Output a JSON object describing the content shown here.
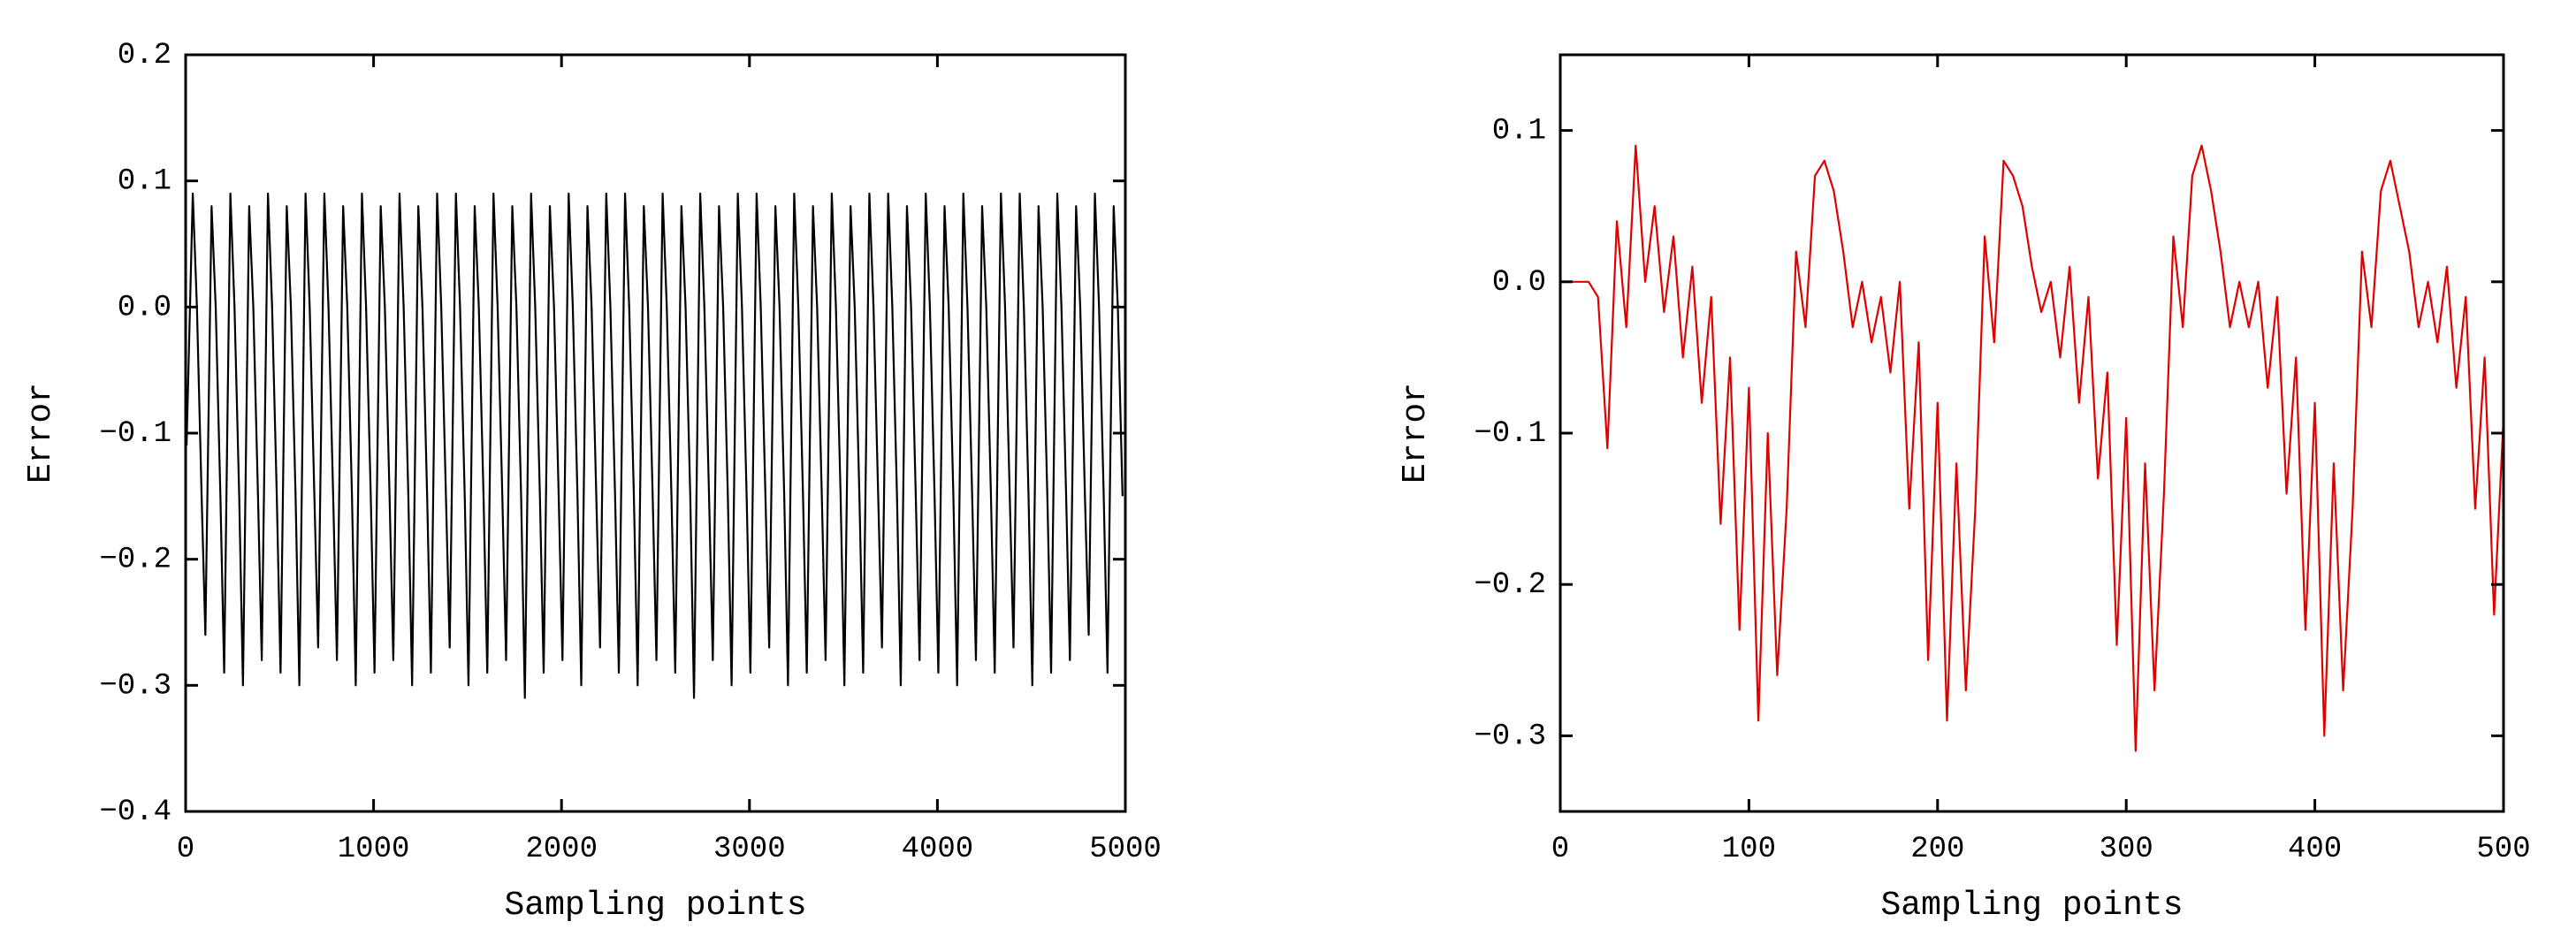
{
  "chart_data": [
    {
      "type": "line",
      "xlabel": "Sampling points",
      "ylabel": "Error",
      "xlim": [
        0,
        5000
      ],
      "xticks": [
        0,
        1000,
        2000,
        3000,
        4000,
        5000
      ],
      "ylim": [
        -0.4,
        0.2
      ],
      "yticks": [
        {
          "value": -0.4,
          "label": "−0.4"
        },
        {
          "value": -0.3,
          "label": "−0.3"
        },
        {
          "value": -0.2,
          "label": "−0.2"
        },
        {
          "value": -0.1,
          "label": "−0.1"
        },
        {
          "value": 0,
          "label": "0.0"
        },
        0.1,
        0.2
      ],
      "x": [
        5,
        38,
        60,
        85,
        105,
        138,
        160,
        185,
        205,
        238,
        260,
        285,
        305,
        338,
        360,
        385,
        405,
        438,
        460,
        485,
        505,
        538,
        560,
        585,
        605,
        638,
        660,
        685,
        705,
        738,
        760,
        785,
        805,
        838,
        860,
        885,
        905,
        938,
        960,
        985,
        1005,
        1038,
        1060,
        1085,
        1105,
        1138,
        1160,
        1185,
        1205,
        1238,
        1260,
        1285,
        1305,
        1338,
        1360,
        1385,
        1405,
        1438,
        1460,
        1485,
        1505,
        1538,
        1560,
        1585,
        1605,
        1638,
        1660,
        1685,
        1705,
        1738,
        1760,
        1785,
        1805,
        1838,
        1860,
        1885,
        1905,
        1938,
        1960,
        1985,
        2005,
        2038,
        2060,
        2085,
        2105,
        2138,
        2160,
        2185,
        2205,
        2238,
        2260,
        2285,
        2305,
        2338,
        2360,
        2385,
        2405,
        2438,
        2460,
        2485,
        2505,
        2538,
        2560,
        2585,
        2605,
        2638,
        2660,
        2685,
        2705,
        2738,
        2760,
        2785,
        2805,
        2838,
        2860,
        2885,
        2905,
        2938,
        2960,
        2985,
        3005,
        3038,
        3060,
        3085,
        3105,
        3138,
        3160,
        3185,
        3205,
        3238,
        3260,
        3285,
        3305,
        3338,
        3360,
        3385,
        3405,
        3438,
        3460,
        3485,
        3505,
        3538,
        3560,
        3585,
        3605,
        3638,
        3660,
        3685,
        3705,
        3738,
        3760,
        3785,
        3805,
        3838,
        3860,
        3885,
        3905,
        3938,
        3960,
        3985,
        4005,
        4038,
        4060,
        4085,
        4105,
        4138,
        4160,
        4185,
        4205,
        4238,
        4260,
        4285,
        4305,
        4338,
        4360,
        4385,
        4405,
        4438,
        4460,
        4485,
        4505,
        4538,
        4560,
        4585,
        4605,
        4638,
        4660,
        4685,
        4705,
        4738,
        4760,
        4785,
        4805,
        4838,
        4860,
        4885,
        4905,
        4938,
        4960,
        4985
      ],
      "series": [
        {
          "color": "#000000",
          "values": [
            -0.11,
            0.09,
            0,
            -0.15,
            -0.26,
            0.08,
            0,
            -0.15,
            -0.29,
            0.09,
            0,
            -0.15,
            -0.3,
            0.08,
            0,
            -0.15,
            -0.28,
            0.09,
            0,
            -0.15,
            -0.29,
            0.08,
            0,
            -0.15,
            -0.3,
            0.09,
            0,
            -0.15,
            -0.27,
            0.09,
            0,
            -0.15,
            -0.28,
            0.08,
            0,
            -0.15,
            -0.3,
            0.09,
            0,
            -0.15,
            -0.29,
            0.08,
            0,
            -0.15,
            -0.28,
            0.09,
            0,
            -0.15,
            -0.3,
            0.08,
            0,
            -0.15,
            -0.29,
            0.09,
            0,
            -0.15,
            -0.27,
            0.09,
            0,
            -0.15,
            -0.3,
            0.08,
            0,
            -0.15,
            -0.29,
            0.09,
            0,
            -0.15,
            -0.28,
            0.08,
            0,
            -0.15,
            -0.31,
            0.09,
            0,
            -0.15,
            -0.29,
            0.08,
            0,
            -0.15,
            -0.28,
            0.09,
            0,
            -0.15,
            -0.3,
            0.08,
            0,
            -0.15,
            -0.27,
            0.09,
            0,
            -0.15,
            -0.29,
            0.09,
            0,
            -0.15,
            -0.3,
            0.08,
            0,
            -0.15,
            -0.28,
            0.09,
            0,
            -0.15,
            -0.29,
            0.08,
            0,
            -0.15,
            -0.31,
            0.09,
            0,
            -0.15,
            -0.28,
            0.08,
            0,
            -0.15,
            -0.3,
            0.09,
            0,
            -0.15,
            -0.29,
            0.09,
            0,
            -0.15,
            -0.27,
            0.08,
            0,
            -0.15,
            -0.3,
            0.09,
            0,
            -0.15,
            -0.29,
            0.08,
            0,
            -0.15,
            -0.28,
            0.09,
            0,
            -0.15,
            -0.3,
            0.08,
            0,
            -0.15,
            -0.29,
            0.09,
            0,
            -0.15,
            -0.27,
            0.09,
            0,
            -0.15,
            -0.3,
            0.08,
            0,
            -0.15,
            -0.28,
            0.09,
            0,
            -0.15,
            -0.29,
            0.08,
            0,
            -0.15,
            -0.3,
            0.09,
            0,
            -0.15,
            -0.28,
            0.08,
            0,
            -0.15,
            -0.29,
            0.09,
            0,
            -0.15,
            -0.27,
            0.09,
            0,
            -0.15,
            -0.3,
            0.08,
            0,
            -0.15,
            -0.29,
            0.09,
            0,
            -0.15,
            -0.28,
            0.08,
            0,
            -0.15,
            -0.26,
            0.09,
            0,
            -0.15,
            -0.29,
            0.08,
            0,
            -0.15
          ]
        }
      ]
    },
    {
      "type": "line",
      "xlabel": "Sampling points",
      "ylabel": "Error",
      "xlim": [
        0,
        500
      ],
      "xticks": [
        0,
        100,
        200,
        300,
        400,
        500
      ],
      "ylim": [
        -0.35,
        0.15
      ],
      "yticks": [
        {
          "value": -0.3,
          "label": "−0.3"
        },
        {
          "value": -0.2,
          "label": "−0.2"
        },
        {
          "value": -0.1,
          "label": "−0.1"
        },
        {
          "value": 0,
          "label": "0.0"
        },
        0.1
      ],
      "x": [
        0,
        5,
        10,
        15,
        20,
        25,
        30,
        35,
        40,
        45,
        50,
        55,
        60,
        65,
        70,
        75,
        80,
        85,
        90,
        95,
        100,
        105,
        110,
        115,
        120,
        125,
        130,
        135,
        140,
        145,
        150,
        155,
        160,
        165,
        170,
        175,
        180,
        185,
        190,
        195,
        200,
        205,
        210,
        215,
        220,
        225,
        230,
        235,
        240,
        245,
        250,
        255,
        260,
        265,
        270,
        275,
        280,
        285,
        290,
        295,
        300,
        305,
        310,
        315,
        320,
        325,
        330,
        335,
        340,
        345,
        350,
        355,
        360,
        365,
        370,
        375,
        380,
        385,
        390,
        395,
        400,
        405,
        410,
        415,
        420,
        425,
        430,
        435,
        440,
        445,
        450,
        455,
        460,
        465,
        470,
        475,
        480,
        485,
        490,
        495,
        500
      ],
      "series": [
        {
          "color": "#e00000",
          "values": [
            0,
            0,
            0,
            0,
            -0.01,
            -0.11,
            0.04,
            -0.03,
            0.09,
            0,
            0.05,
            -0.02,
            0.03,
            -0.05,
            0.01,
            -0.08,
            -0.01,
            -0.16,
            -0.05,
            -0.23,
            -0.07,
            -0.29,
            -0.1,
            -0.26,
            -0.15,
            0.02,
            -0.03,
            0.07,
            0.08,
            0.06,
            0.02,
            -0.03,
            0,
            -0.04,
            -0.01,
            -0.06,
            0,
            -0.15,
            -0.04,
            -0.25,
            -0.08,
            -0.29,
            -0.12,
            -0.27,
            -0.15,
            0.03,
            -0.04,
            0.08,
            0.07,
            0.05,
            0.01,
            -0.02,
            0,
            -0.05,
            0.01,
            -0.08,
            -0.01,
            -0.13,
            -0.06,
            -0.24,
            -0.09,
            -0.31,
            -0.12,
            -0.27,
            -0.14,
            0.03,
            -0.03,
            0.07,
            0.09,
            0.06,
            0.02,
            -0.03,
            0,
            -0.03,
            0,
            -0.07,
            -0.01,
            -0.14,
            -0.05,
            -0.23,
            -0.08,
            -0.3,
            -0.12,
            -0.27,
            -0.15,
            0.02,
            -0.03,
            0.06,
            0.08,
            0.05,
            0.02,
            -0.03,
            0,
            -0.04,
            0.01,
            -0.07,
            -0.01,
            -0.15,
            -0.05,
            -0.22,
            -0.09
          ]
        }
      ]
    }
  ]
}
